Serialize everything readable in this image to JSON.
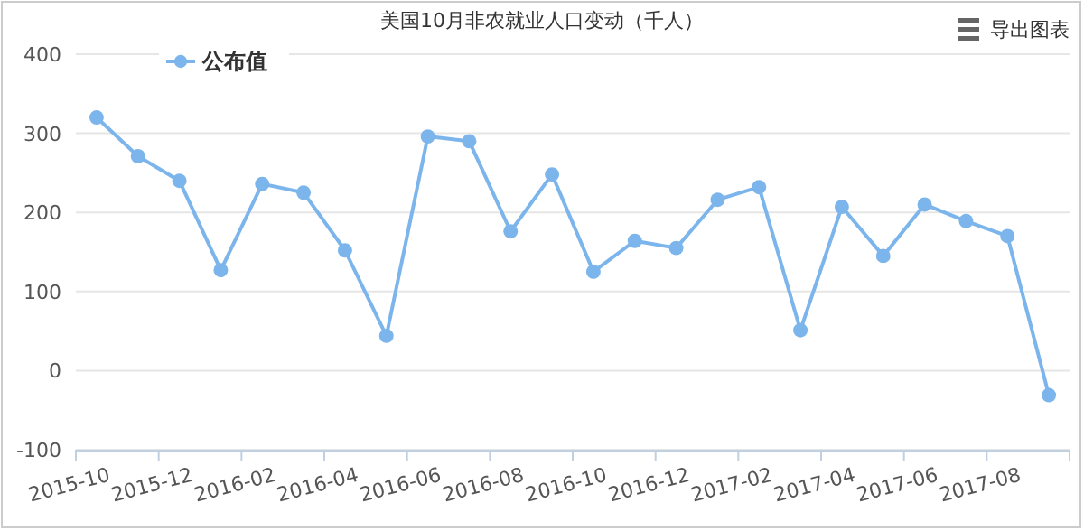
{
  "chart_data": {
    "type": "line",
    "title": "美国10月非农就业人口变动（千人）",
    "categories": [
      "2015-10",
      null,
      "2015-12",
      null,
      "2016-02",
      null,
      "2016-04",
      null,
      "2016-06",
      null,
      "2016-08",
      null,
      "2016-10",
      null,
      "2016-12",
      null,
      "2017-02",
      null,
      "2017-04",
      null,
      "2017-06",
      null,
      "2017-08",
      null
    ],
    "series": [
      {
        "name": "公布值",
        "color": "#7cb5ec",
        "values": [
          320,
          271,
          240,
          127,
          236,
          225,
          152,
          44,
          296,
          290,
          176,
          248,
          125,
          164,
          155,
          216,
          232,
          51,
          207,
          145,
          210,
          189,
          170,
          -31
        ]
      }
    ],
    "ylim": [
      -100,
      400
    ],
    "yticks": [
      -100,
      0,
      100,
      200,
      300,
      400
    ],
    "grid": "y",
    "legend": "top left",
    "marker": "circle",
    "line_style": "solid",
    "annotations": [
      "导出图表"
    ]
  }
}
